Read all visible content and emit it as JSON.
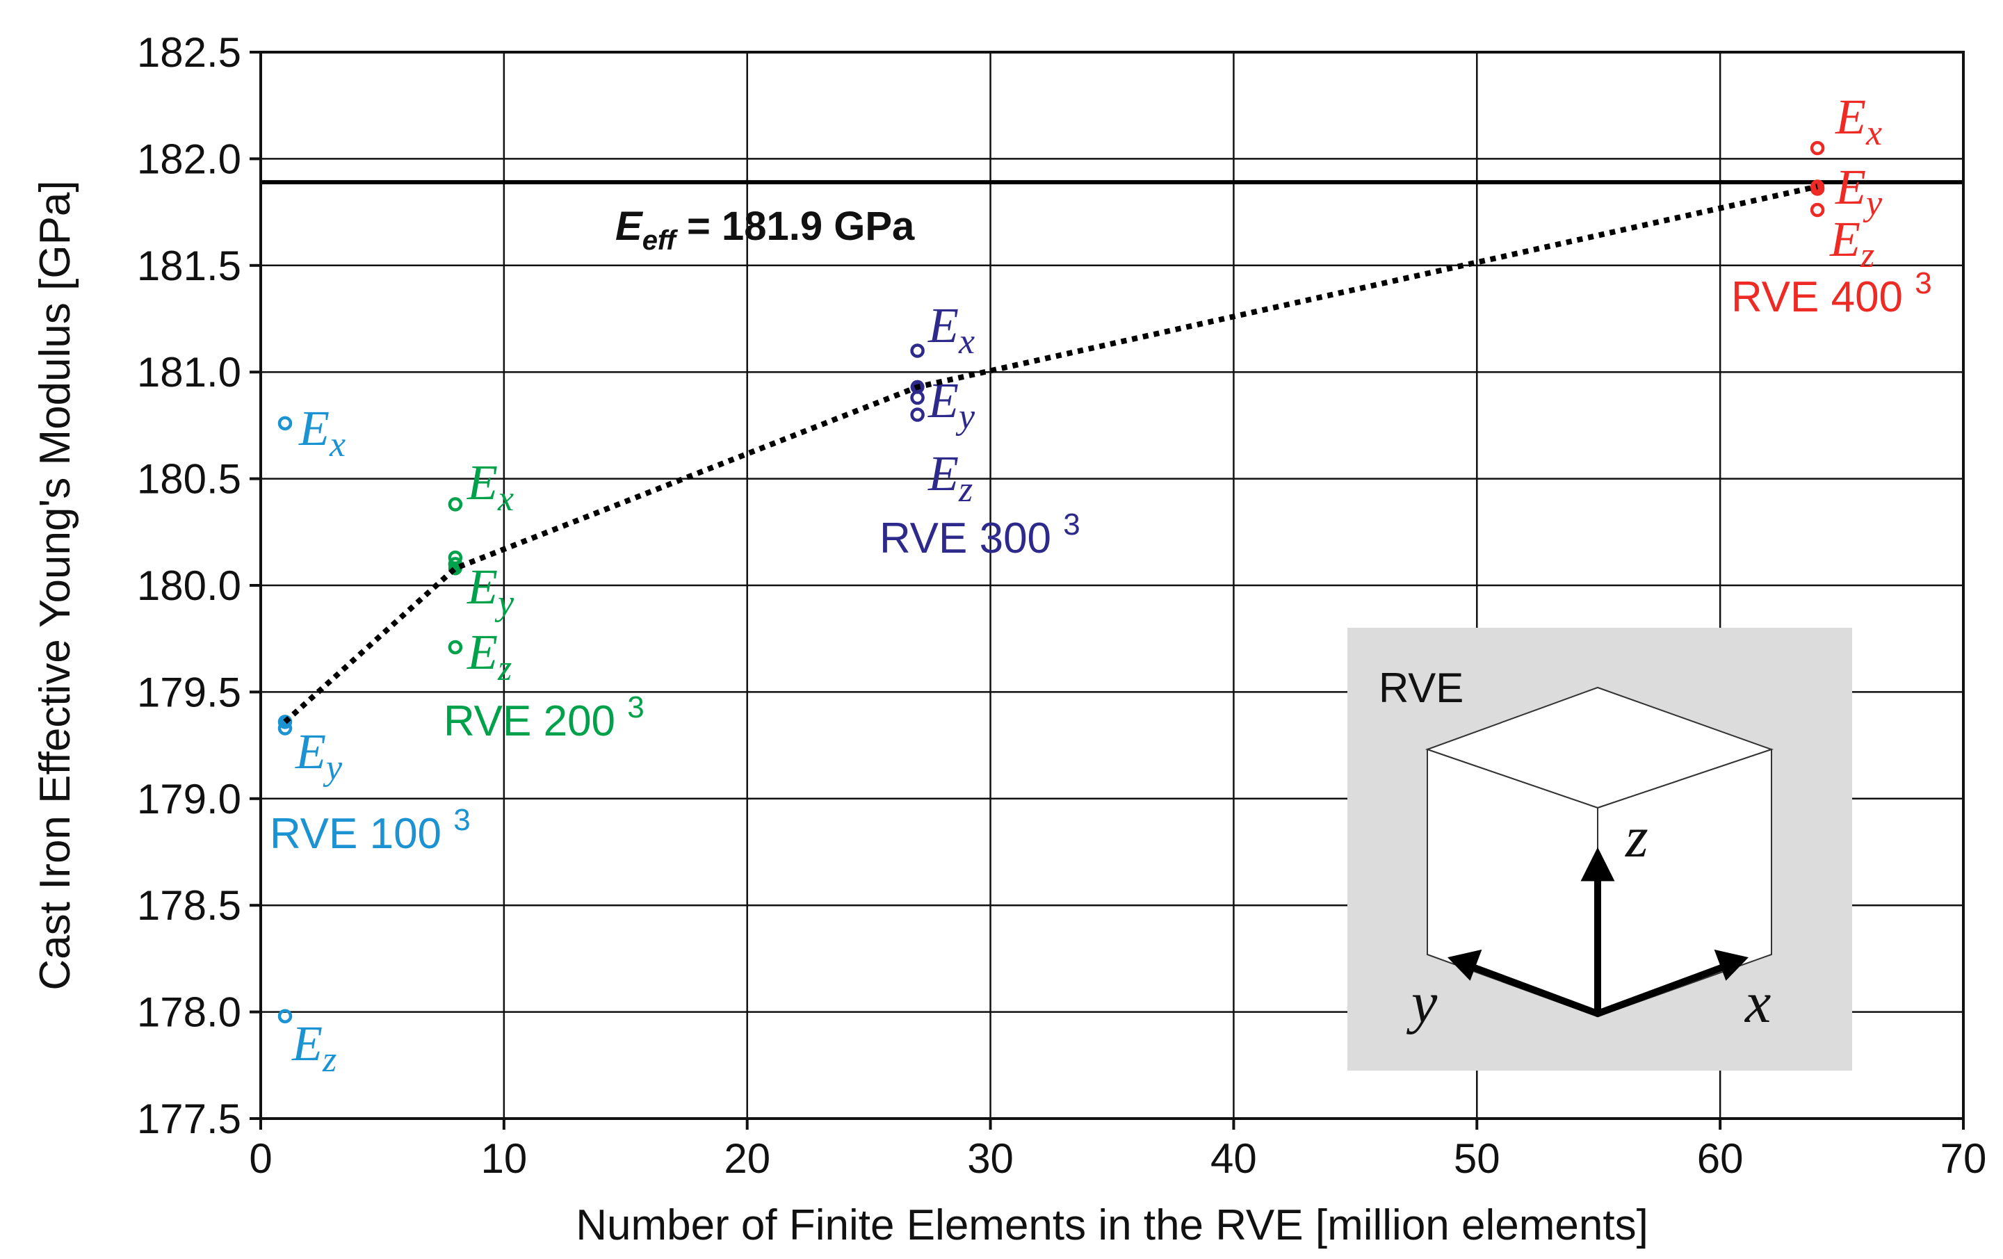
{
  "chart_data": {
    "type": "scatter",
    "title": "",
    "xlabel": "Number of Finite Elements in the RVE [million elements]",
    "ylabel": "Cast Iron Effective Young's Modulus [GPa]",
    "xlim": [
      0,
      70
    ],
    "ylim": [
      177.5,
      182.5
    ],
    "grid": true,
    "x_ticks": [
      "0",
      "10",
      "20",
      "30",
      "40",
      "50",
      "60",
      "70"
    ],
    "y_ticks": [
      "177.5",
      "178.0",
      "178.5",
      "179.0",
      "179.5",
      "180.0",
      "180.5",
      "181.0",
      "181.5",
      "182.0",
      "182.5"
    ],
    "reference_line": {
      "value": 181.89,
      "label_symbol": "E",
      "label_subscript": "eff",
      "label_value": " = 181.9 GPa"
    },
    "trend_line": {
      "style": "dotted",
      "x": [
        1,
        8,
        27,
        64
      ],
      "y": [
        179.36,
        180.08,
        180.93,
        181.87
      ]
    },
    "series": [
      {
        "name": "RVE 100",
        "name_base": "RVE 100",
        "name_exp": "3",
        "color": "#1b92d1",
        "x": 1,
        "points": [
          {
            "component": "x",
            "value": 180.76
          },
          {
            "component": "y",
            "value": 179.36
          },
          {
            "component": "y",
            "value": 179.33
          },
          {
            "component": "z",
            "value": 177.98
          }
        ],
        "mean": 179.36,
        "labels": [
          {
            "text": "E",
            "sub": "x"
          },
          {
            "text": "E",
            "sub": "y"
          },
          {
            "text": "E",
            "sub": "z"
          }
        ]
      },
      {
        "name": "RVE 200",
        "name_base": "RVE 200",
        "name_exp": "3",
        "color": "#00a14b",
        "x": 8,
        "points": [
          {
            "component": "x",
            "value": 180.38
          },
          {
            "component": "y",
            "value": 180.13
          },
          {
            "component": "y",
            "value": 180.1
          },
          {
            "component": "z",
            "value": 179.71
          }
        ],
        "mean": 180.08,
        "labels": [
          {
            "text": "E",
            "sub": "x"
          },
          {
            "text": "E",
            "sub": "y"
          },
          {
            "text": "E",
            "sub": "z"
          }
        ]
      },
      {
        "name": "RVE 300",
        "name_base": "RVE 300",
        "name_exp": "3",
        "color": "#2e2a8c",
        "x": 27,
        "points": [
          {
            "component": "x",
            "value": 181.1
          },
          {
            "component": "y",
            "value": 180.88
          },
          {
            "component": "z",
            "value": 180.8
          }
        ],
        "mean": 180.93,
        "labels": [
          {
            "text": "E",
            "sub": "x"
          },
          {
            "text": "E",
            "sub": "y"
          },
          {
            "text": "E",
            "sub": "z"
          }
        ]
      },
      {
        "name": "RVE 400",
        "name_base": "RVE 400",
        "name_exp": "3",
        "color": "#ee2a24",
        "x": 64,
        "points": [
          {
            "component": "x",
            "value": 182.05
          },
          {
            "component": "y",
            "value": 181.86
          },
          {
            "component": "z",
            "value": 181.76
          }
        ],
        "mean": 181.87,
        "labels": [
          {
            "text": "E",
            "sub": "x"
          },
          {
            "text": "E",
            "sub": "y"
          },
          {
            "text": "E",
            "sub": "z"
          }
        ]
      }
    ],
    "inset": {
      "title": "RVE",
      "axis_x": "x",
      "axis_y": "y",
      "axis_z": "z"
    }
  }
}
